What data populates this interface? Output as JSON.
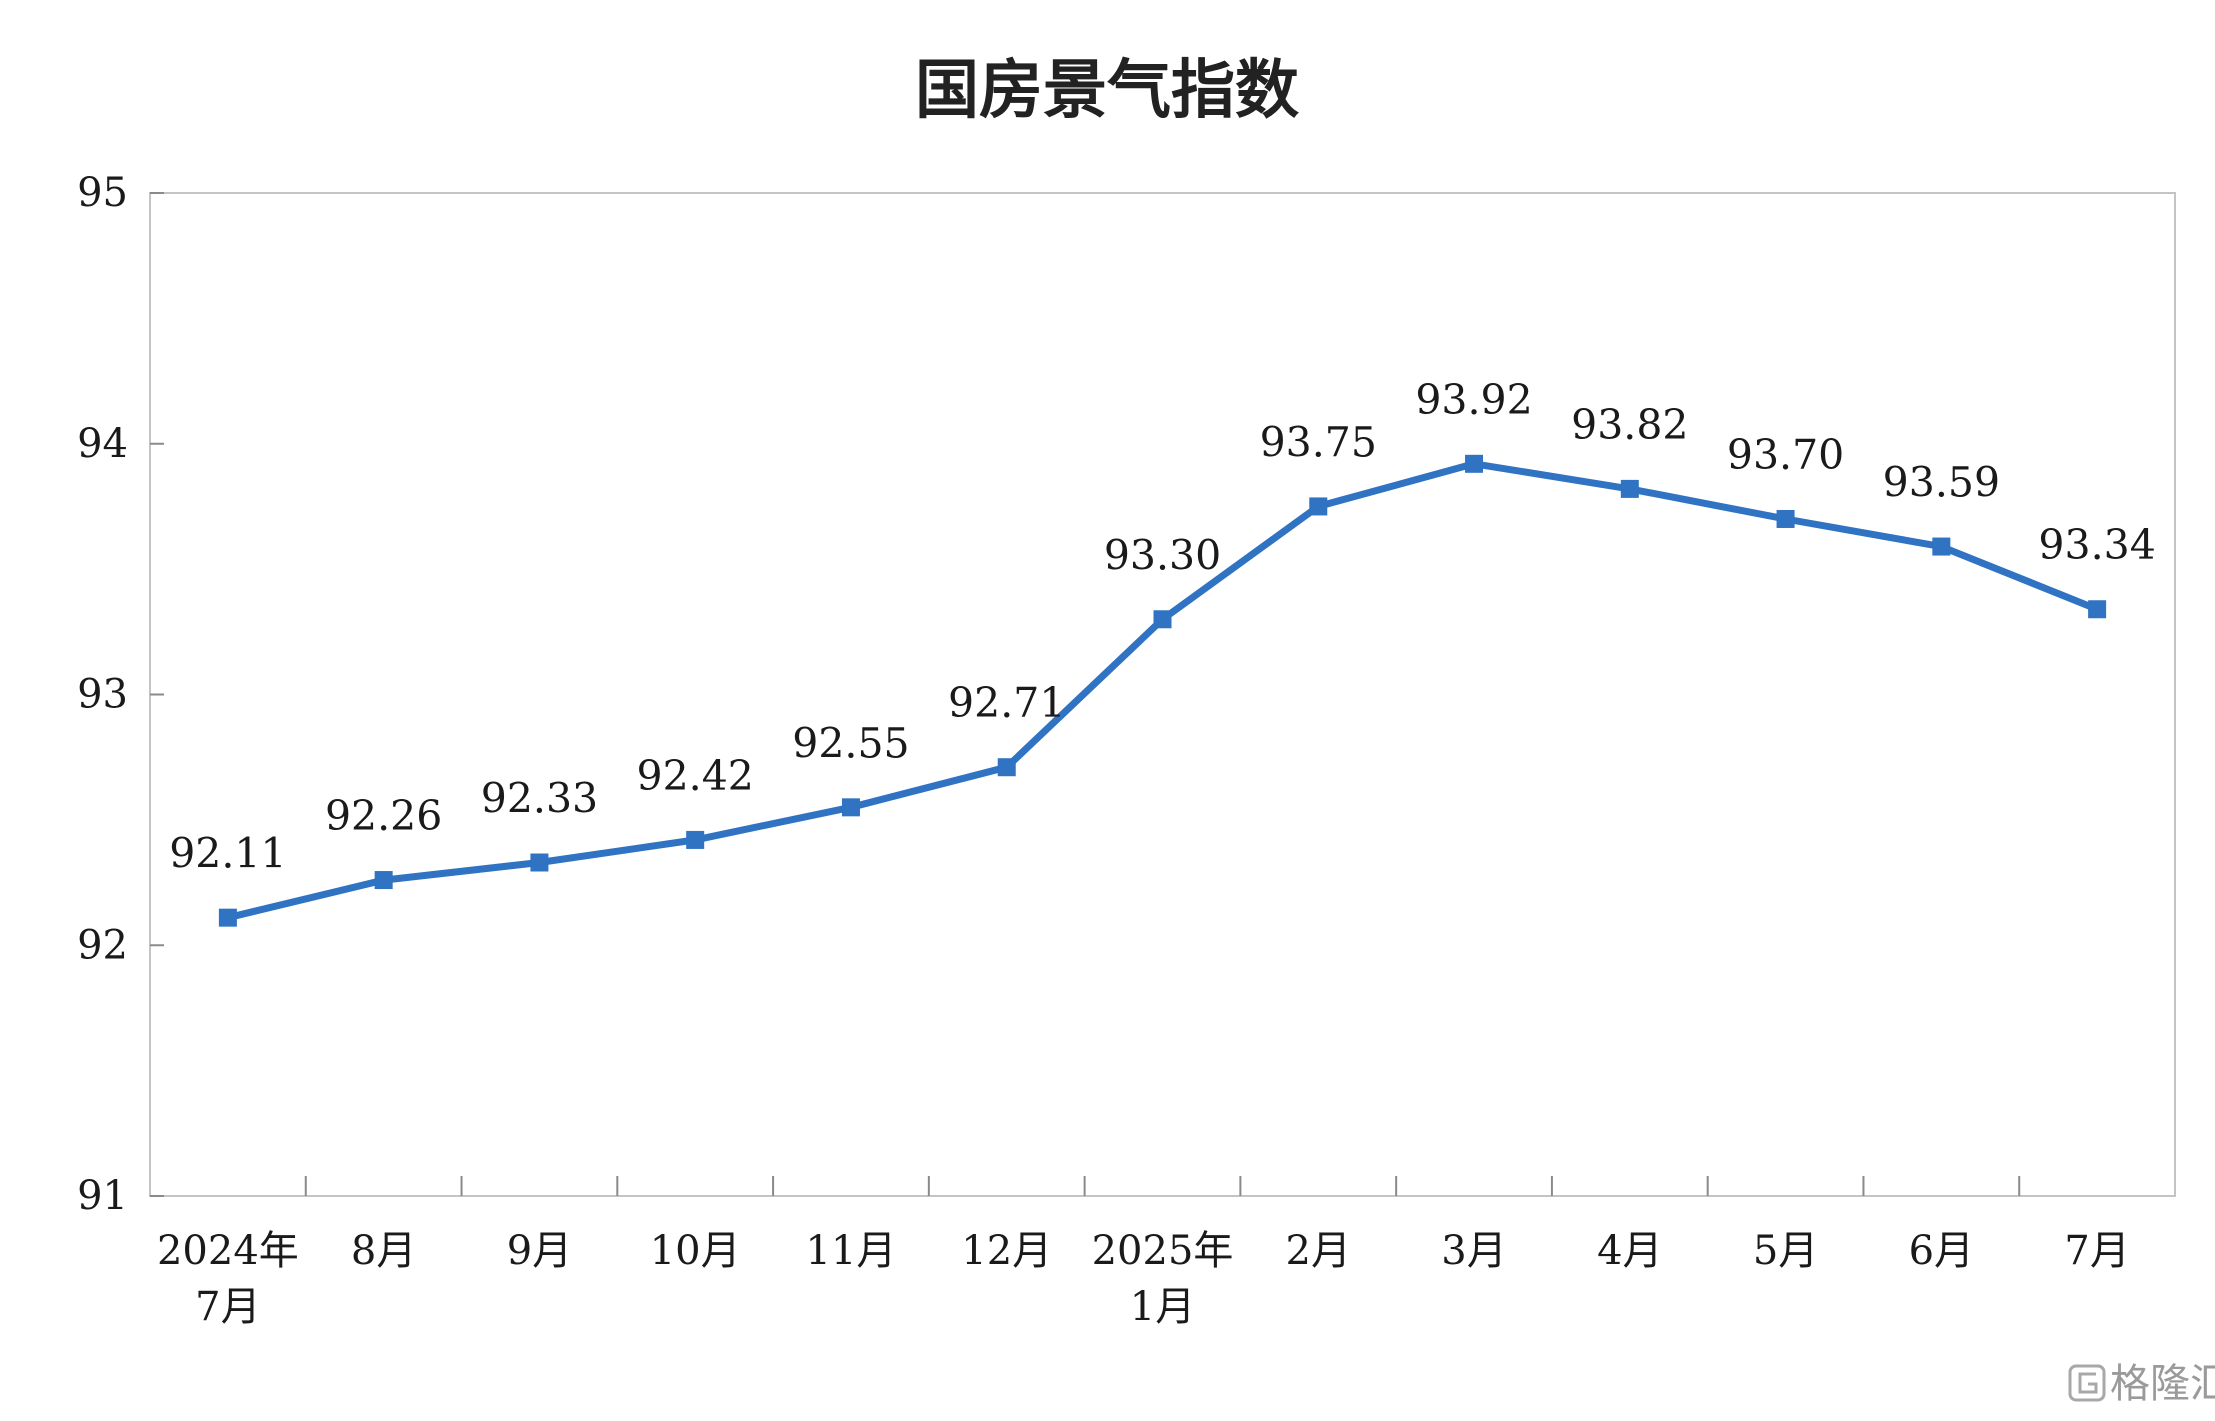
{
  "chart_data": {
    "type": "line",
    "title": "国房景气指数",
    "xlabel": "",
    "ylabel": "",
    "categories": [
      [
        "2024年",
        "7月"
      ],
      [
        "8月"
      ],
      [
        "9月"
      ],
      [
        "10月"
      ],
      [
        "11月"
      ],
      [
        "12月"
      ],
      [
        "2025年",
        "1月"
      ],
      [
        "2月"
      ],
      [
        "3月"
      ],
      [
        "4月"
      ],
      [
        "5月"
      ],
      [
        "6月"
      ],
      [
        "7月"
      ]
    ],
    "series": [
      {
        "values": [
          92.11,
          92.26,
          92.33,
          92.42,
          92.55,
          92.71,
          93.3,
          93.75,
          93.92,
          93.82,
          93.7,
          93.59,
          93.34
        ],
        "labels": [
          "92.11",
          "92.26",
          "92.33",
          "92.42",
          "92.55",
          "92.71",
          "93.30",
          "93.75",
          "93.92",
          "93.82",
          "93.70",
          "93.59",
          "93.34"
        ],
        "color": "#2f73c2",
        "marker": "square"
      }
    ],
    "ylim": [
      91,
      95
    ],
    "yticks": [
      "91",
      "92",
      "93",
      "94",
      "95"
    ],
    "grid": false,
    "legend": "none"
  },
  "watermark": {
    "icon": "gelonghui-logo-icon",
    "text": "格隆汇"
  }
}
